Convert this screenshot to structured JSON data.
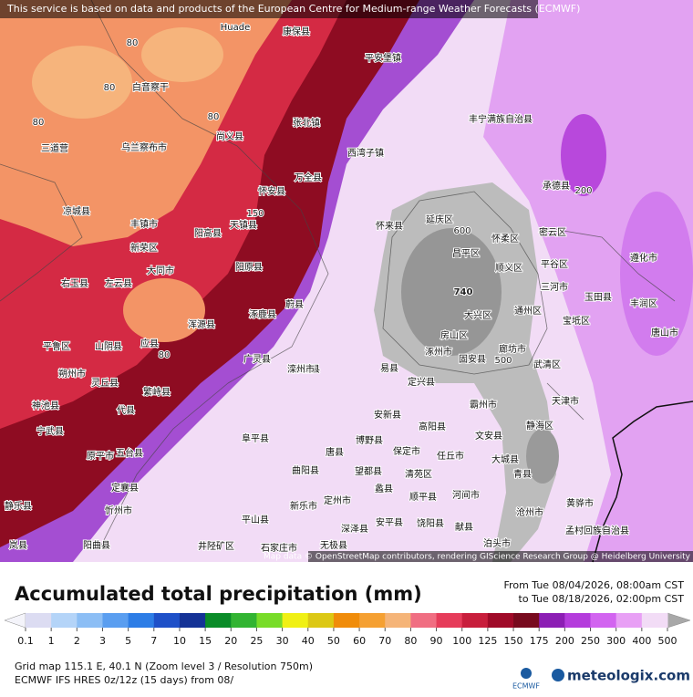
{
  "banner": "This service is based on data and products of the European Centre for Medium-range Weather Forecasts (ECMWF)",
  "attribution": "Map data © OpenStreetMap contributors, rendering GIScience Research Group @ Heidelberg University",
  "title": "Accumulated total precipitation (mm)",
  "period": {
    "from": "From Tue 08/04/2026, 08:00am CST",
    "to": "to Tue 08/18/2026, 02:00pm CST"
  },
  "legend": {
    "ticks": [
      0.1,
      1,
      2,
      3,
      5,
      7,
      10,
      15,
      20,
      25,
      30,
      40,
      50,
      60,
      70,
      80,
      90,
      100,
      125,
      150,
      175,
      200,
      250,
      300,
      400,
      500
    ],
    "colors": [
      "#dcdcf2",
      "#b4d4f8",
      "#8cbef5",
      "#5a9ef0",
      "#2d7de6",
      "#1e50c8",
      "#143296",
      "#0a8c28",
      "#32b432",
      "#78dc28",
      "#f0f014",
      "#dcc814",
      "#f08c0a",
      "#f5a032",
      "#f5b478",
      "#f06e82",
      "#e63c5a",
      "#c81e3c",
      "#a00a28",
      "#780a1e",
      "#8c1eb4",
      "#b43cdc",
      "#d264f0",
      "#e8a0f5",
      "#f2dcf6"
    ],
    "below_color": "#f4f4fa",
    "above_color": "#a8a8a8"
  },
  "map": {
    "places": [
      "Huade",
      "康保县",
      "平安堡镇",
      "白音察干",
      "张北镇",
      "尚义县",
      "乌兰察布市",
      "三道营",
      "西湾子镇",
      "万全县",
      "怀安县",
      "凉城县",
      "丰镇市",
      "天镇县",
      "阳高县",
      "新荣区",
      "大同市",
      "左云县",
      "右玉县",
      "阳原县",
      "怀来县",
      "延庆区",
      "昌平区",
      "怀柔区",
      "密云区",
      "平谷区",
      "顺义区",
      "大兴区",
      "房山区",
      "涿州市",
      "固安县",
      "廊坊市",
      "通州区",
      "三河市",
      "武清区",
      "天津市",
      "宝坻区",
      "玉田县",
      "丰润区",
      "唐山市",
      "遵化市",
      "承德县",
      "丰宁满族自治县",
      "涿鹿县",
      "蔚县",
      "广灵县",
      "浑源县",
      "应县",
      "山阴县",
      "朔州市",
      "平鲁区",
      "神池县",
      "代县",
      "繁峙县",
      "灵丘县",
      "涞源县",
      "易县",
      "定兴县",
      "保定市",
      "清苑区",
      "安新县",
      "高阳县",
      "任丘市",
      "霸州市",
      "文安县",
      "大城县",
      "静海区",
      "青县",
      "河间市",
      "沧州市",
      "献县",
      "饶阳县",
      "安平县",
      "深泽县",
      "无极县",
      "定州市",
      "新乐市",
      "曲阳县",
      "唐县",
      "望都县",
      "蠡县",
      "博野县",
      "顺平县",
      "阜平县",
      "五台县",
      "定襄县",
      "忻州市",
      "原平市",
      "宁武县",
      "静乐县",
      "岚县",
      "阳曲县",
      "平山县",
      "井陉矿区",
      "石家庄市",
      "黄骅市",
      "孟村回族自治县",
      "泊头市",
      "滦州市"
    ],
    "contour_labels": [
      80,
      80,
      80,
      80,
      150,
      600,
      740,
      500,
      200,
      80
    ]
  },
  "footer": {
    "grid": "Grid map 115.1 E, 40.1 N (Zoom level 3 / Resolution 750m)",
    "model": "ECMWF IFS HRES 0z/12z (15 days) from 08/",
    "ecmwf_logo": "ECMWF",
    "meteologix_logo": "meteologix.com"
  }
}
